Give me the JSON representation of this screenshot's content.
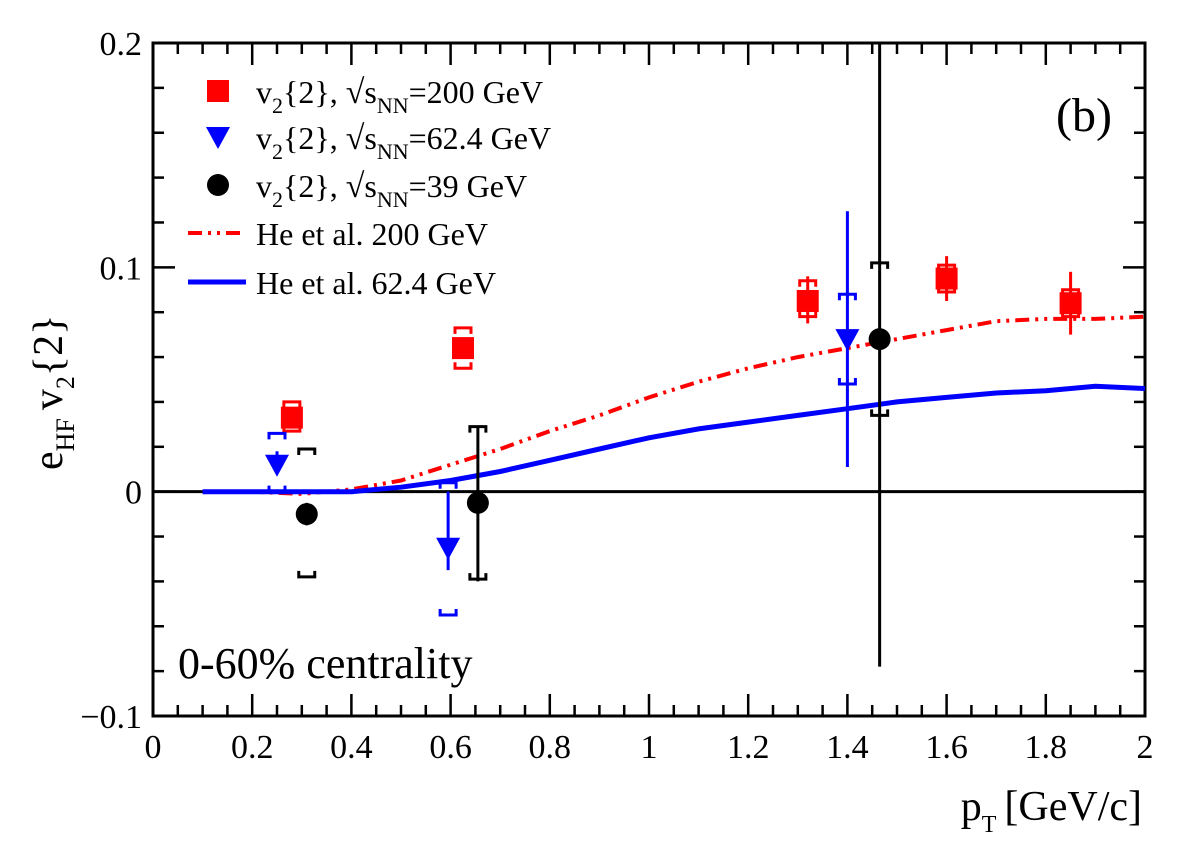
{
  "chart_data": {
    "type": "scatter",
    "panel_label": "(b)",
    "annotation": "0-60% centrality",
    "xlabel": "p",
    "xlabel_sub": "T",
    "xlabel_unit": "[GeV/c]",
    "ylabel": "e",
    "ylabel_sub": "HF",
    "ylabel_rest": "v",
    "ylabel_rest_sub": "2",
    "ylabel_tail": "{2}",
    "xlim": [
      0,
      2
    ],
    "ylim": [
      -0.1,
      0.2
    ],
    "x_ticks": [
      "0",
      "0.2",
      "0.4",
      "0.6",
      "0.8",
      "1",
      "1.2",
      "1.4",
      "1.6",
      "1.8",
      "2"
    ],
    "y_ticks": [
      "0.2",
      "0.1",
      "0",
      "−0.1"
    ],
    "y_tick_values": [
      0.2,
      0.1,
      0,
      -0.1
    ],
    "series": [
      {
        "name": "v2{2}, √sNN=200 GeV",
        "legend": {
          "v": "v",
          "v_sub": "2",
          "mid": "{2}, ",
          "s": "s",
          "s_sub": "NN",
          "energy": "=200 GeV"
        },
        "marker": "square",
        "color": "#ff0000",
        "points": [
          {
            "x": 0.28,
            "y": 0.033,
            "stat": [
              0.033,
              0.033
            ],
            "sys": [
              0.027,
              0.04
            ]
          },
          {
            "x": 0.625,
            "y": 0.064,
            "stat": [
              0.064,
              0.064
            ],
            "sys": [
              0.055,
              0.073
            ]
          },
          {
            "x": 1.32,
            "y": 0.085,
            "stat": [
              0.075,
              0.096
            ],
            "sys": [
              0.078,
              0.094
            ]
          },
          {
            "x": 1.6,
            "y": 0.095,
            "stat": [
              0.085,
              0.105
            ],
            "sys": [
              0.089,
              0.101
            ]
          },
          {
            "x": 1.85,
            "y": 0.084,
            "stat": [
              0.07,
              0.098
            ],
            "sys": [
              0.078,
              0.09
            ]
          }
        ]
      },
      {
        "name": "v2{2}, √sNN=62.4 GeV",
        "legend": {
          "v": "v",
          "v_sub": "2",
          "mid": "{2}, ",
          "s": "s",
          "s_sub": "NN",
          "energy": "=62.4 GeV"
        },
        "marker": "triangle-down",
        "color": "#0000ff",
        "points": [
          {
            "x": 0.25,
            "y": 0.012,
            "stat": [
              0.008,
              0.018
            ],
            "sys": [
              0.0,
              0.026
            ]
          },
          {
            "x": 0.595,
            "y": -0.025,
            "stat": [
              -0.035,
              0.0
            ],
            "sys": [
              -0.055,
              0.004
            ]
          },
          {
            "x": 1.4,
            "y": 0.068,
            "stat": [
              0.011,
              0.125
            ],
            "sys": [
              0.048,
              0.088
            ]
          }
        ]
      },
      {
        "name": "v2{2}, √sNN=39 GeV",
        "legend": {
          "v": "v",
          "v_sub": "2",
          "mid": "{2}, ",
          "s": "s",
          "s_sub": "NN",
          "energy": "=39 GeV"
        },
        "marker": "circle",
        "color": "#000000",
        "points": [
          {
            "x": 0.31,
            "y": -0.01,
            "stat": [
              -0.015,
              -0.005
            ],
            "sys": [
              -0.038,
              0.019
            ]
          },
          {
            "x": 0.655,
            "y": -0.005,
            "stat": [
              -0.04,
              0.029
            ],
            "sys": [
              -0.039,
              0.029
            ]
          },
          {
            "x": 1.465,
            "y": 0.068,
            "stat": [
              -0.078,
              0.2
            ],
            "sys": [
              0.034,
              0.102
            ]
          }
        ]
      },
      {
        "name": "He et al. 200 GeV",
        "type": "line",
        "style": "dash-dot",
        "color": "#ff0000",
        "x": [
          0.1,
          0.2,
          0.3,
          0.4,
          0.5,
          0.6,
          0.7,
          0.8,
          0.9,
          1.0,
          1.1,
          1.2,
          1.3,
          1.4,
          1.5,
          1.6,
          1.7,
          1.8,
          1.9,
          2.0
        ],
        "y": [
          0.0,
          0.0,
          -0.001,
          0.001,
          0.005,
          0.012,
          0.019,
          0.027,
          0.034,
          0.042,
          0.049,
          0.055,
          0.06,
          0.064,
          0.068,
          0.072,
          0.076,
          0.077,
          0.077,
          0.078
        ]
      },
      {
        "name": "He et al. 62.4 GeV",
        "type": "line",
        "style": "solid",
        "color": "#0000ff",
        "x": [
          0.1,
          0.2,
          0.3,
          0.4,
          0.5,
          0.6,
          0.7,
          0.8,
          0.9,
          1.0,
          1.1,
          1.2,
          1.3,
          1.4,
          1.5,
          1.6,
          1.7,
          1.8,
          1.9,
          2.0
        ],
        "y": [
          0.0,
          0.0,
          0.0,
          0.0,
          0.002,
          0.005,
          0.009,
          0.014,
          0.019,
          0.024,
          0.028,
          0.031,
          0.034,
          0.037,
          0.04,
          0.042,
          0.044,
          0.045,
          0.047,
          0.046
        ]
      }
    ]
  }
}
